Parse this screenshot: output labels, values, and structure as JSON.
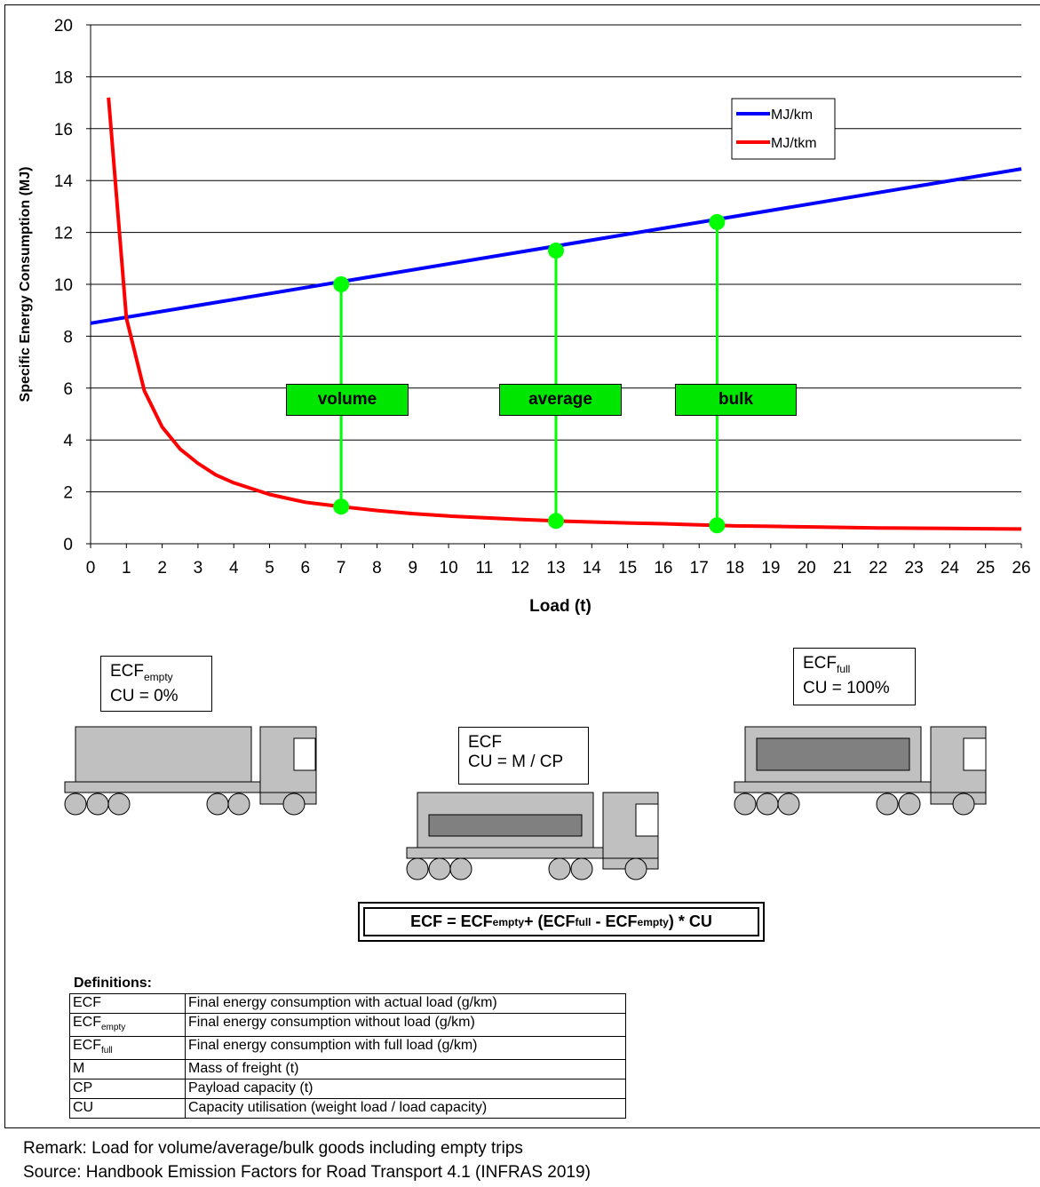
{
  "chart_data": {
    "type": "line",
    "xlabel": "Load (t)",
    "ylabel": "Specific Energy Consumption (MJ)",
    "xlim": [
      0,
      26
    ],
    "ylim": [
      0,
      20
    ],
    "xticks": [
      "0",
      "1",
      "2",
      "3",
      "4",
      "5",
      "6",
      "7",
      "8",
      "9",
      "10",
      "11",
      "12",
      "13",
      "14",
      "15",
      "16",
      "17",
      "18",
      "19",
      "20",
      "21",
      "22",
      "23",
      "24",
      "25",
      "26"
    ],
    "yticks": [
      "0",
      "2",
      "4",
      "6",
      "8",
      "10",
      "12",
      "14",
      "16",
      "18",
      "20"
    ],
    "grid": "horizontal",
    "legend_position": "top-right",
    "series": [
      {
        "name": "MJ/km",
        "color": "#0000ff",
        "x": [
          0,
          26
        ],
        "y": [
          8.5,
          14.45
        ]
      },
      {
        "name": "MJ/tkm",
        "color": "#ff0000",
        "x": [
          0.5,
          1,
          1.5,
          2,
          2.5,
          3,
          3.5,
          4,
          5,
          6,
          7,
          8,
          9,
          10,
          11,
          12,
          13,
          14,
          15,
          16,
          17,
          17.5,
          18,
          19,
          20,
          21,
          22,
          23,
          24,
          25,
          26
        ],
        "y": [
          17.2,
          8.7,
          5.9,
          4.5,
          3.65,
          3.1,
          2.65,
          2.35,
          1.9,
          1.6,
          1.43,
          1.28,
          1.16,
          1.07,
          1.0,
          0.94,
          0.88,
          0.84,
          0.8,
          0.77,
          0.73,
          0.71,
          0.69,
          0.67,
          0.65,
          0.63,
          0.61,
          0.6,
          0.59,
          0.58,
          0.57
        ]
      }
    ],
    "markers": [
      {
        "label": "volume",
        "x": 7,
        "y_top": 10.0,
        "y_bottom": 1.43
      },
      {
        "label": "average",
        "x": 13,
        "y_top": 11.3,
        "y_bottom": 0.88
      },
      {
        "label": "bulk",
        "x": 17.5,
        "y_top": 12.4,
        "y_bottom": 0.71
      }
    ],
    "marker_color": "#00ff00",
    "marker_label_bg": "#00e600"
  },
  "trucks": {
    "empty": {
      "title": "ECF",
      "title_sub": "empty",
      "cu": "CU = 0%"
    },
    "partial": {
      "title": "ECF",
      "cu": "CU = M / CP"
    },
    "full": {
      "title": "ECF",
      "title_sub": "full",
      "cu": "CU = 100%"
    }
  },
  "formula": {
    "lhs": "ECF = ECF",
    "sub1": "empty",
    "op1": "+ (ECF",
    "sub2": "full",
    "op2": " - ECF",
    "sub3": "empty",
    "tail": ") * CU"
  },
  "definitions": {
    "title": "Definitions:",
    "rows": [
      {
        "symbol": "ECF",
        "sub": "",
        "text": "Final energy consumption with actual load (g/km)"
      },
      {
        "symbol": "ECF",
        "sub": "empty",
        "text": "Final energy consumption without load (g/km)"
      },
      {
        "symbol": "ECF",
        "sub": "full",
        "text": "Final energy consumption with full load (g/km)"
      },
      {
        "symbol": "M",
        "sub": "",
        "text": "Mass of freight (t)"
      },
      {
        "symbol": "CP",
        "sub": "",
        "text": "Payload capacity (t)"
      },
      {
        "symbol": "CU",
        "sub": "",
        "text": "Capacity utilisation (weight load / load capacity)"
      }
    ]
  },
  "footer": {
    "remark": "Remark: Load for volume/average/bulk goods including empty trips",
    "source": "Source: Handbook Emission Factors for Road Transport 4.1 (INFRAS 2019)"
  },
  "colors": {
    "truck_body": "#c0c0c0",
    "cargo": "#808080"
  }
}
